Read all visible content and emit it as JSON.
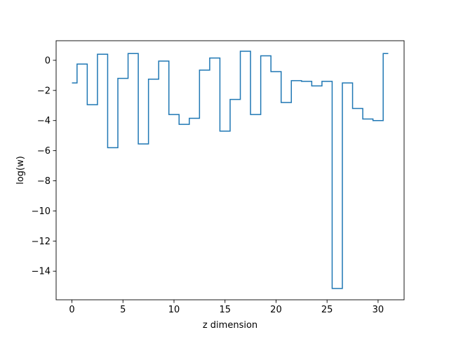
{
  "chart_data": {
    "type": "line",
    "title": "",
    "xlabel": "z dimension",
    "ylabel": "log(w)",
    "xlim": [
      -1.55,
      32.55
    ],
    "ylim": [
      -15.9,
      1.3
    ],
    "xticks": [
      0,
      5,
      10,
      15,
      20,
      25,
      30
    ],
    "yticks": [
      0,
      -2,
      -4,
      -6,
      -8,
      -10,
      -12,
      -14
    ],
    "xtick_labels": [
      "0",
      "5",
      "10",
      "15",
      "20",
      "25",
      "30"
    ],
    "ytick_labels": [
      "0",
      "−2",
      "−4",
      "−6",
      "−8",
      "−10",
      "−12",
      "−14"
    ],
    "grid": false,
    "legend": "none",
    "line_color": "#1f77b4",
    "series": [
      {
        "style": "step-mid",
        "x": [
          0,
          1,
          2,
          3,
          4,
          5,
          6,
          7,
          8,
          9,
          10,
          11,
          12,
          13,
          14,
          15,
          16,
          17,
          18,
          19,
          20,
          21,
          22,
          23,
          24,
          25,
          26,
          27,
          28,
          29,
          30,
          31
        ],
        "y": [
          -1.5,
          -0.25,
          -2.95,
          0.4,
          -5.8,
          -1.2,
          0.45,
          -5.55,
          -1.25,
          -0.05,
          -3.6,
          -4.25,
          -3.85,
          -0.65,
          0.15,
          -4.7,
          -2.6,
          0.6,
          -3.6,
          0.3,
          -0.75,
          -2.8,
          -1.35,
          -1.4,
          -1.7,
          -1.4,
          -15.15,
          -1.5,
          -3.2,
          -3.9,
          -4.0,
          0.45
        ]
      }
    ]
  }
}
